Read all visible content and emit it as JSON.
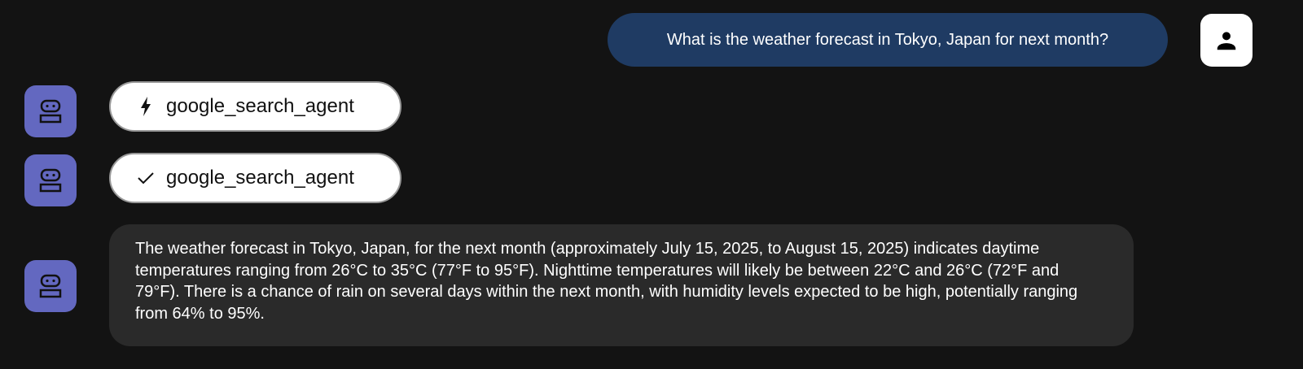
{
  "user_message": "What is the weather forecast in Tokyo, Japan for next month?",
  "events": [
    {
      "icon": "bolt-icon",
      "label": "google_search_agent"
    },
    {
      "icon": "check-icon",
      "label": "google_search_agent"
    }
  ],
  "response": "The weather forecast in Tokyo, Japan, for the next month (approximately July 15, 2025, to August 15, 2025) indicates daytime temperatures ranging from 26°C to 35°C (77°F to 95°F). Nighttime temperatures will likely be between 22°C and 26°C (72°F and 79°F). There is a chance of rain on several days within the next month, with humidity levels expected to be high, potentially ranging from 64% to 95%.",
  "colors": {
    "background": "#131313",
    "user_bubble": "#1f3b63",
    "bot_avatar": "#6368c0",
    "response_bubble": "#2a2a2a"
  }
}
